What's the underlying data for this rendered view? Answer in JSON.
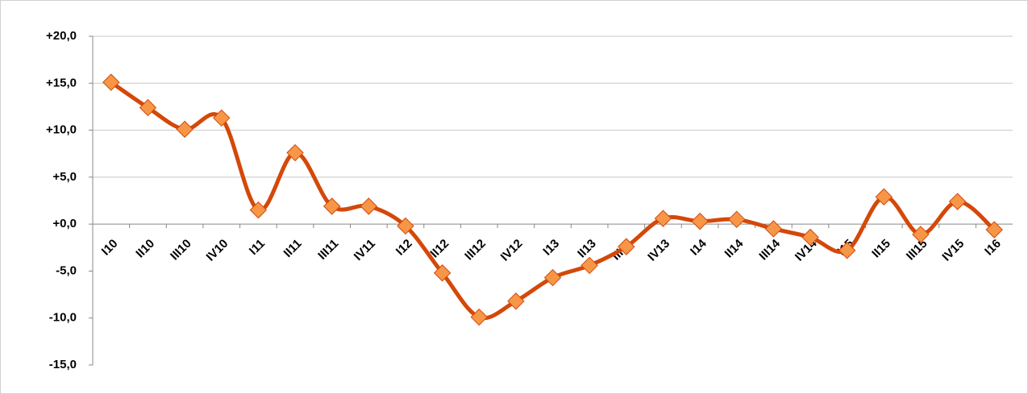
{
  "chart_data": {
    "type": "line",
    "categories": [
      "I10",
      "II10",
      "III10",
      "IV10",
      "I11",
      "II11",
      "III11",
      "IV11",
      "I12",
      "II12",
      "III12",
      "IV12",
      "I13",
      "II13",
      "III13",
      "IV13",
      "I14",
      "II14",
      "III14",
      "IV14",
      "I15",
      "II15",
      "III15",
      "IV15",
      "I16"
    ],
    "series": [
      {
        "color": "#d4480a",
        "marker_color": "#f79646",
        "values": [
          15.1,
          12.4,
          10.1,
          11.3,
          1.5,
          7.6,
          1.9,
          1.9,
          -0.2,
          -5.2,
          -9.9,
          -8.2,
          -5.7,
          -4.4,
          -2.4,
          0.6,
          0.3,
          0.5,
          -0.5,
          -1.4,
          -2.8,
          2.9,
          -1.1,
          2.4,
          -0.6
        ]
      }
    ],
    "ylim": [
      -15,
      20
    ],
    "yticks": [
      {
        "value": -15,
        "label": "-15,0"
      },
      {
        "value": -10,
        "label": "-10,0"
      },
      {
        "value": -5,
        "label": "-5,0"
      },
      {
        "value": 0,
        "label": "+0,0"
      },
      {
        "value": 5,
        "label": "+5,0"
      },
      {
        "value": 10,
        "label": "+10,0"
      },
      {
        "value": 15,
        "label": "+15,0"
      },
      {
        "value": 20,
        "label": "+20,0"
      }
    ],
    "grid": true
  }
}
